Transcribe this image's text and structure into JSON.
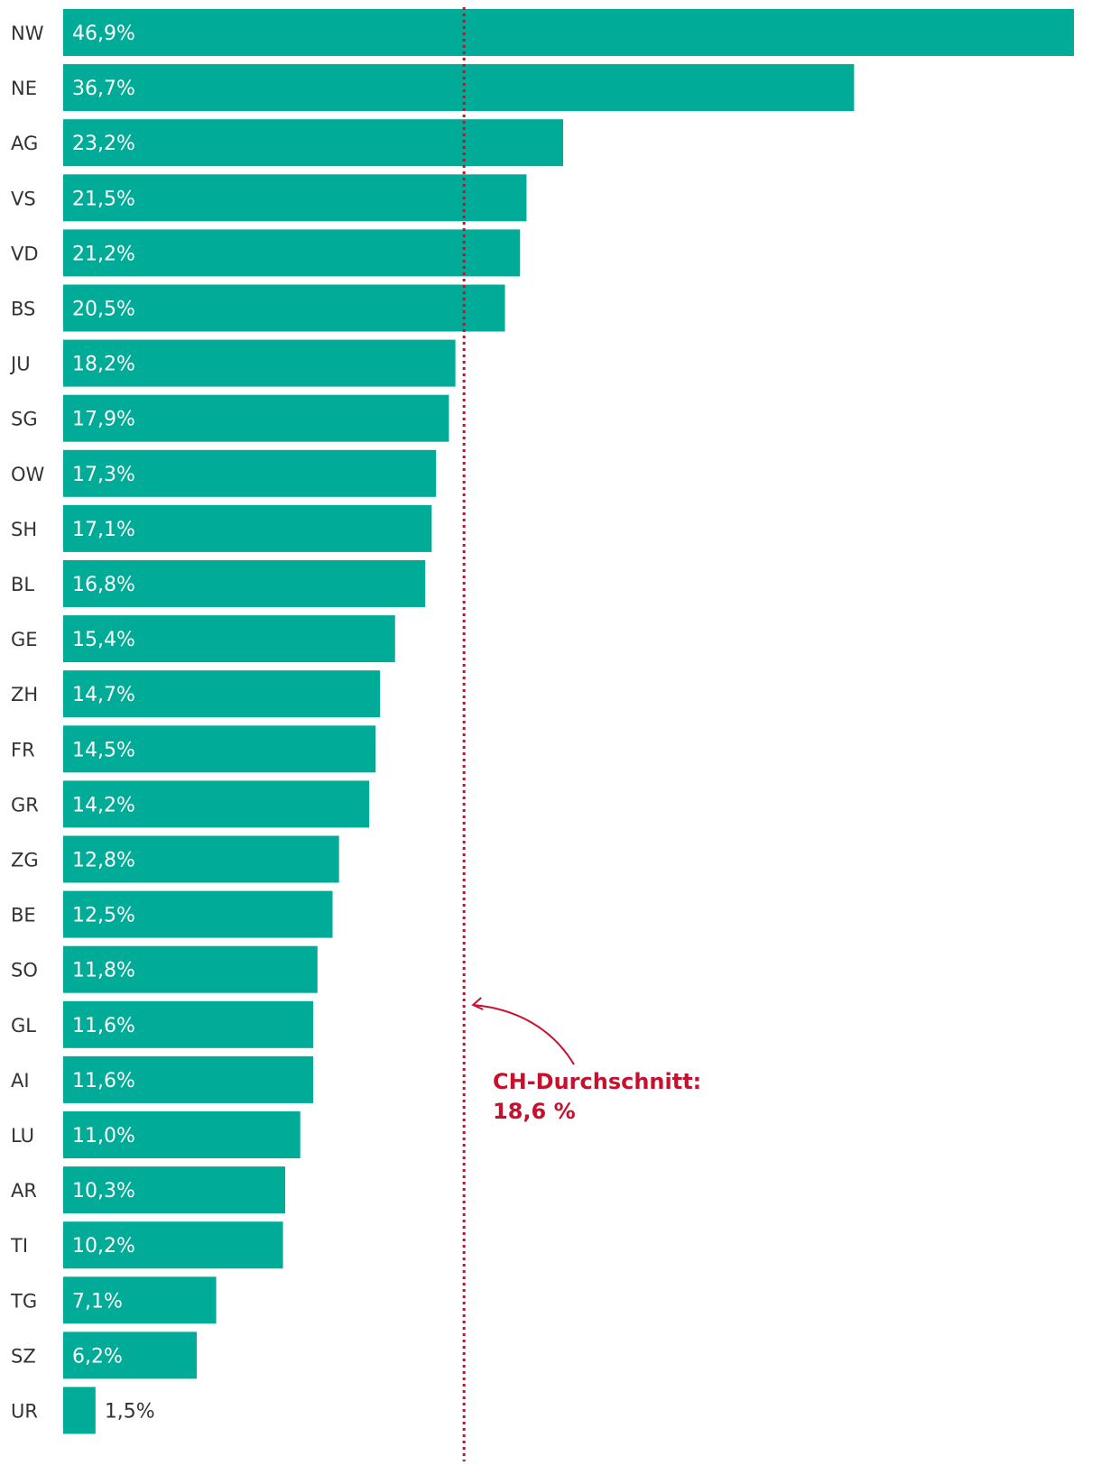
{
  "chart_data": {
    "type": "bar",
    "orientation": "horizontal",
    "categories": [
      "NW",
      "NE",
      "AG",
      "VS",
      "VD",
      "BS",
      "JU",
      "SG",
      "OW",
      "SH",
      "BL",
      "GE",
      "ZH",
      "FR",
      "GR",
      "ZG",
      "BE",
      "SO",
      "GL",
      "AI",
      "LU",
      "AR",
      "TI",
      "TG",
      "SZ",
      "UR"
    ],
    "values": [
      46.9,
      36.7,
      23.2,
      21.5,
      21.2,
      20.5,
      18.2,
      17.9,
      17.3,
      17.1,
      16.8,
      15.4,
      14.7,
      14.5,
      14.2,
      12.8,
      12.5,
      11.8,
      11.6,
      11.6,
      11.0,
      10.3,
      10.2,
      7.1,
      6.2,
      1.5
    ],
    "value_labels": [
      "46,9%",
      "36,7%",
      "23,2%",
      "21,5%",
      "21,2%",
      "20,5%",
      "18,2%",
      "17,9%",
      "17,3%",
      "17,1%",
      "16,8%",
      "15,4%",
      "14,7%",
      "14,5%",
      "14,2%",
      "12,8%",
      "12,5%",
      "11,8%",
      "11,6%",
      "11,6%",
      "11,0%",
      "10,3%",
      "10,2%",
      "7,1%",
      "6,2%",
      "1,5%"
    ],
    "title": "",
    "xlabel": "",
    "ylabel": "",
    "xlim": [
      0,
      46.9
    ],
    "grid": false,
    "legend": "none",
    "reference_line": {
      "value": 18.6,
      "style": "dotted",
      "label_lines": [
        "CH-Durchschnitt:",
        "18,6 %"
      ]
    },
    "colors": {
      "bar": "#00ab98",
      "label_inside": "#ffffff",
      "label_outside": "#333333",
      "category": "#333333",
      "reference": "#c8102e"
    }
  }
}
